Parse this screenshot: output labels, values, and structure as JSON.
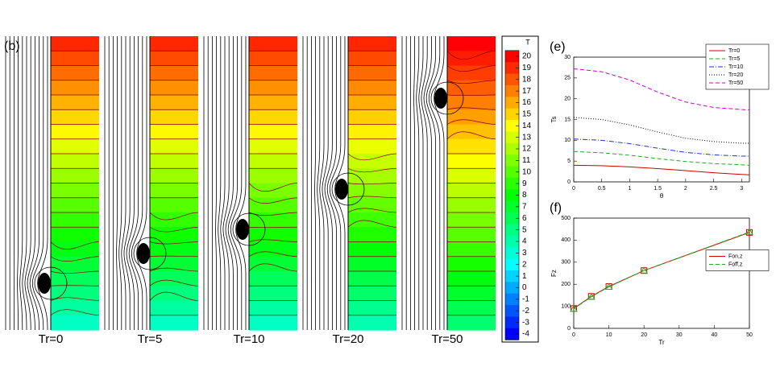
{
  "chart_data": [
    {
      "type": "contour",
      "panel_label": "(b)",
      "panels": [
        "Tr=0",
        "Tr=5",
        "Tr=10",
        "Tr=20",
        "Tr=50"
      ],
      "colorbar": {
        "title": "T",
        "ticks": [
          20,
          19,
          18,
          17,
          16,
          15,
          14,
          13,
          12,
          11,
          10,
          9,
          8,
          7,
          6,
          5,
          4,
          3,
          2,
          1,
          0,
          -1,
          -2,
          -3,
          -4
        ]
      }
    },
    {
      "type": "line",
      "panel_label": "(e)",
      "x_label": "θ",
      "y_label": "Ts",
      "x": [
        0,
        0.5,
        1,
        1.5,
        2,
        2.5,
        3,
        3.14
      ],
      "series": [
        {
          "name": "Tr=0",
          "color": "#cc0000",
          "dash": "solid",
          "values": [
            4,
            3.9,
            3.6,
            3.2,
            2.7,
            2.2,
            1.8,
            1.7
          ]
        },
        {
          "name": "Tr=5",
          "color": "#22aa22",
          "dash": "dashed",
          "values": [
            7.3,
            7,
            6.4,
            5.6,
            4.9,
            4.4,
            4.1,
            4
          ]
        },
        {
          "name": "Tr=10",
          "color": "#2233cc",
          "dash": "dashdot",
          "values": [
            10.3,
            10,
            9.2,
            8.1,
            7.1,
            6.5,
            6.2,
            6.2
          ]
        },
        {
          "name": "Tr=20",
          "color": "#000000",
          "dash": "dotted",
          "values": [
            15.5,
            15,
            13.7,
            12,
            10.5,
            9.7,
            9.3,
            9.3
          ]
        },
        {
          "name": "Tr=50",
          "color": "#cc00cc",
          "dash": "dashed",
          "values": [
            27.2,
            26.5,
            24.5,
            21.6,
            19.2,
            17.9,
            17.4,
            17.3
          ]
        }
      ],
      "xlim": [
        0,
        3.14
      ],
      "xticks": [
        0,
        0.5,
        1,
        1.5,
        2,
        2.5,
        3
      ],
      "ylim": [
        0,
        30
      ],
      "yticks": [
        0,
        5,
        10,
        15,
        20,
        25,
        30
      ],
      "legend": "upper right"
    },
    {
      "type": "line",
      "panel_label": "(f)",
      "x_label": "Tr",
      "y_label": "Fz",
      "x": [
        0,
        5,
        10,
        20,
        50
      ],
      "series": [
        {
          "name": "Fon,z",
          "color": "#cc0000",
          "dash": "solid",
          "marker": "square",
          "values": [
            90,
            145,
            190,
            262,
            435
          ]
        },
        {
          "name": "Foff,z",
          "color": "#22aa22",
          "dash": "dashed",
          "marker": "triangle",
          "values": [
            88,
            143,
            188,
            262,
            437
          ]
        }
      ],
      "xlim": [
        0,
        50
      ],
      "xticks": [
        0,
        10,
        20,
        30,
        40,
        50
      ],
      "ylim": [
        0,
        500
      ],
      "yticks": [
        0,
        100,
        200,
        300,
        400,
        500
      ],
      "legend": "center right"
    }
  ]
}
